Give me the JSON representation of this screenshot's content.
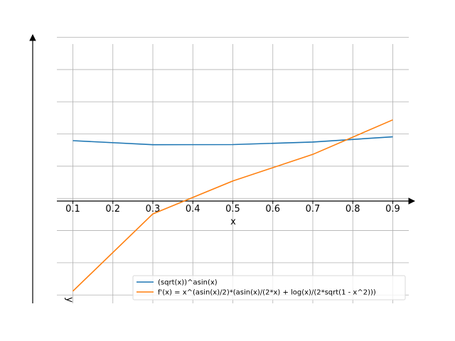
{
  "chart_data": {
    "type": "line",
    "title": "",
    "xlabel": "x",
    "ylabel": "y",
    "x": [
      0.1,
      0.3,
      0.5,
      0.7,
      0.9
    ],
    "xticks": [
      "0.1",
      "0.2",
      "0.3",
      "0.4",
      "0.5",
      "0.6",
      "0.7",
      "0.8",
      "0.9"
    ],
    "xlim": [
      0.06,
      0.94
    ],
    "ylim": [
      -1.63,
      2.54
    ],
    "grid": true,
    "legend_position": "lower-right",
    "series": [
      {
        "name": "(sqrt(x))^asin(x)",
        "color": "#1f77b4",
        "values": [
          0.896,
          0.833,
          0.836,
          0.875,
          0.956
        ]
      },
      {
        "name": "f'(x) = x^(asin(x)/2)*(asin(x)/(2*x) + log(x)/(2*sqrt(1 - x^2)))",
        "color": "#ff7f0e",
        "values": [
          -1.44,
          -0.241,
          0.271,
          0.683,
          1.22
        ]
      }
    ]
  }
}
